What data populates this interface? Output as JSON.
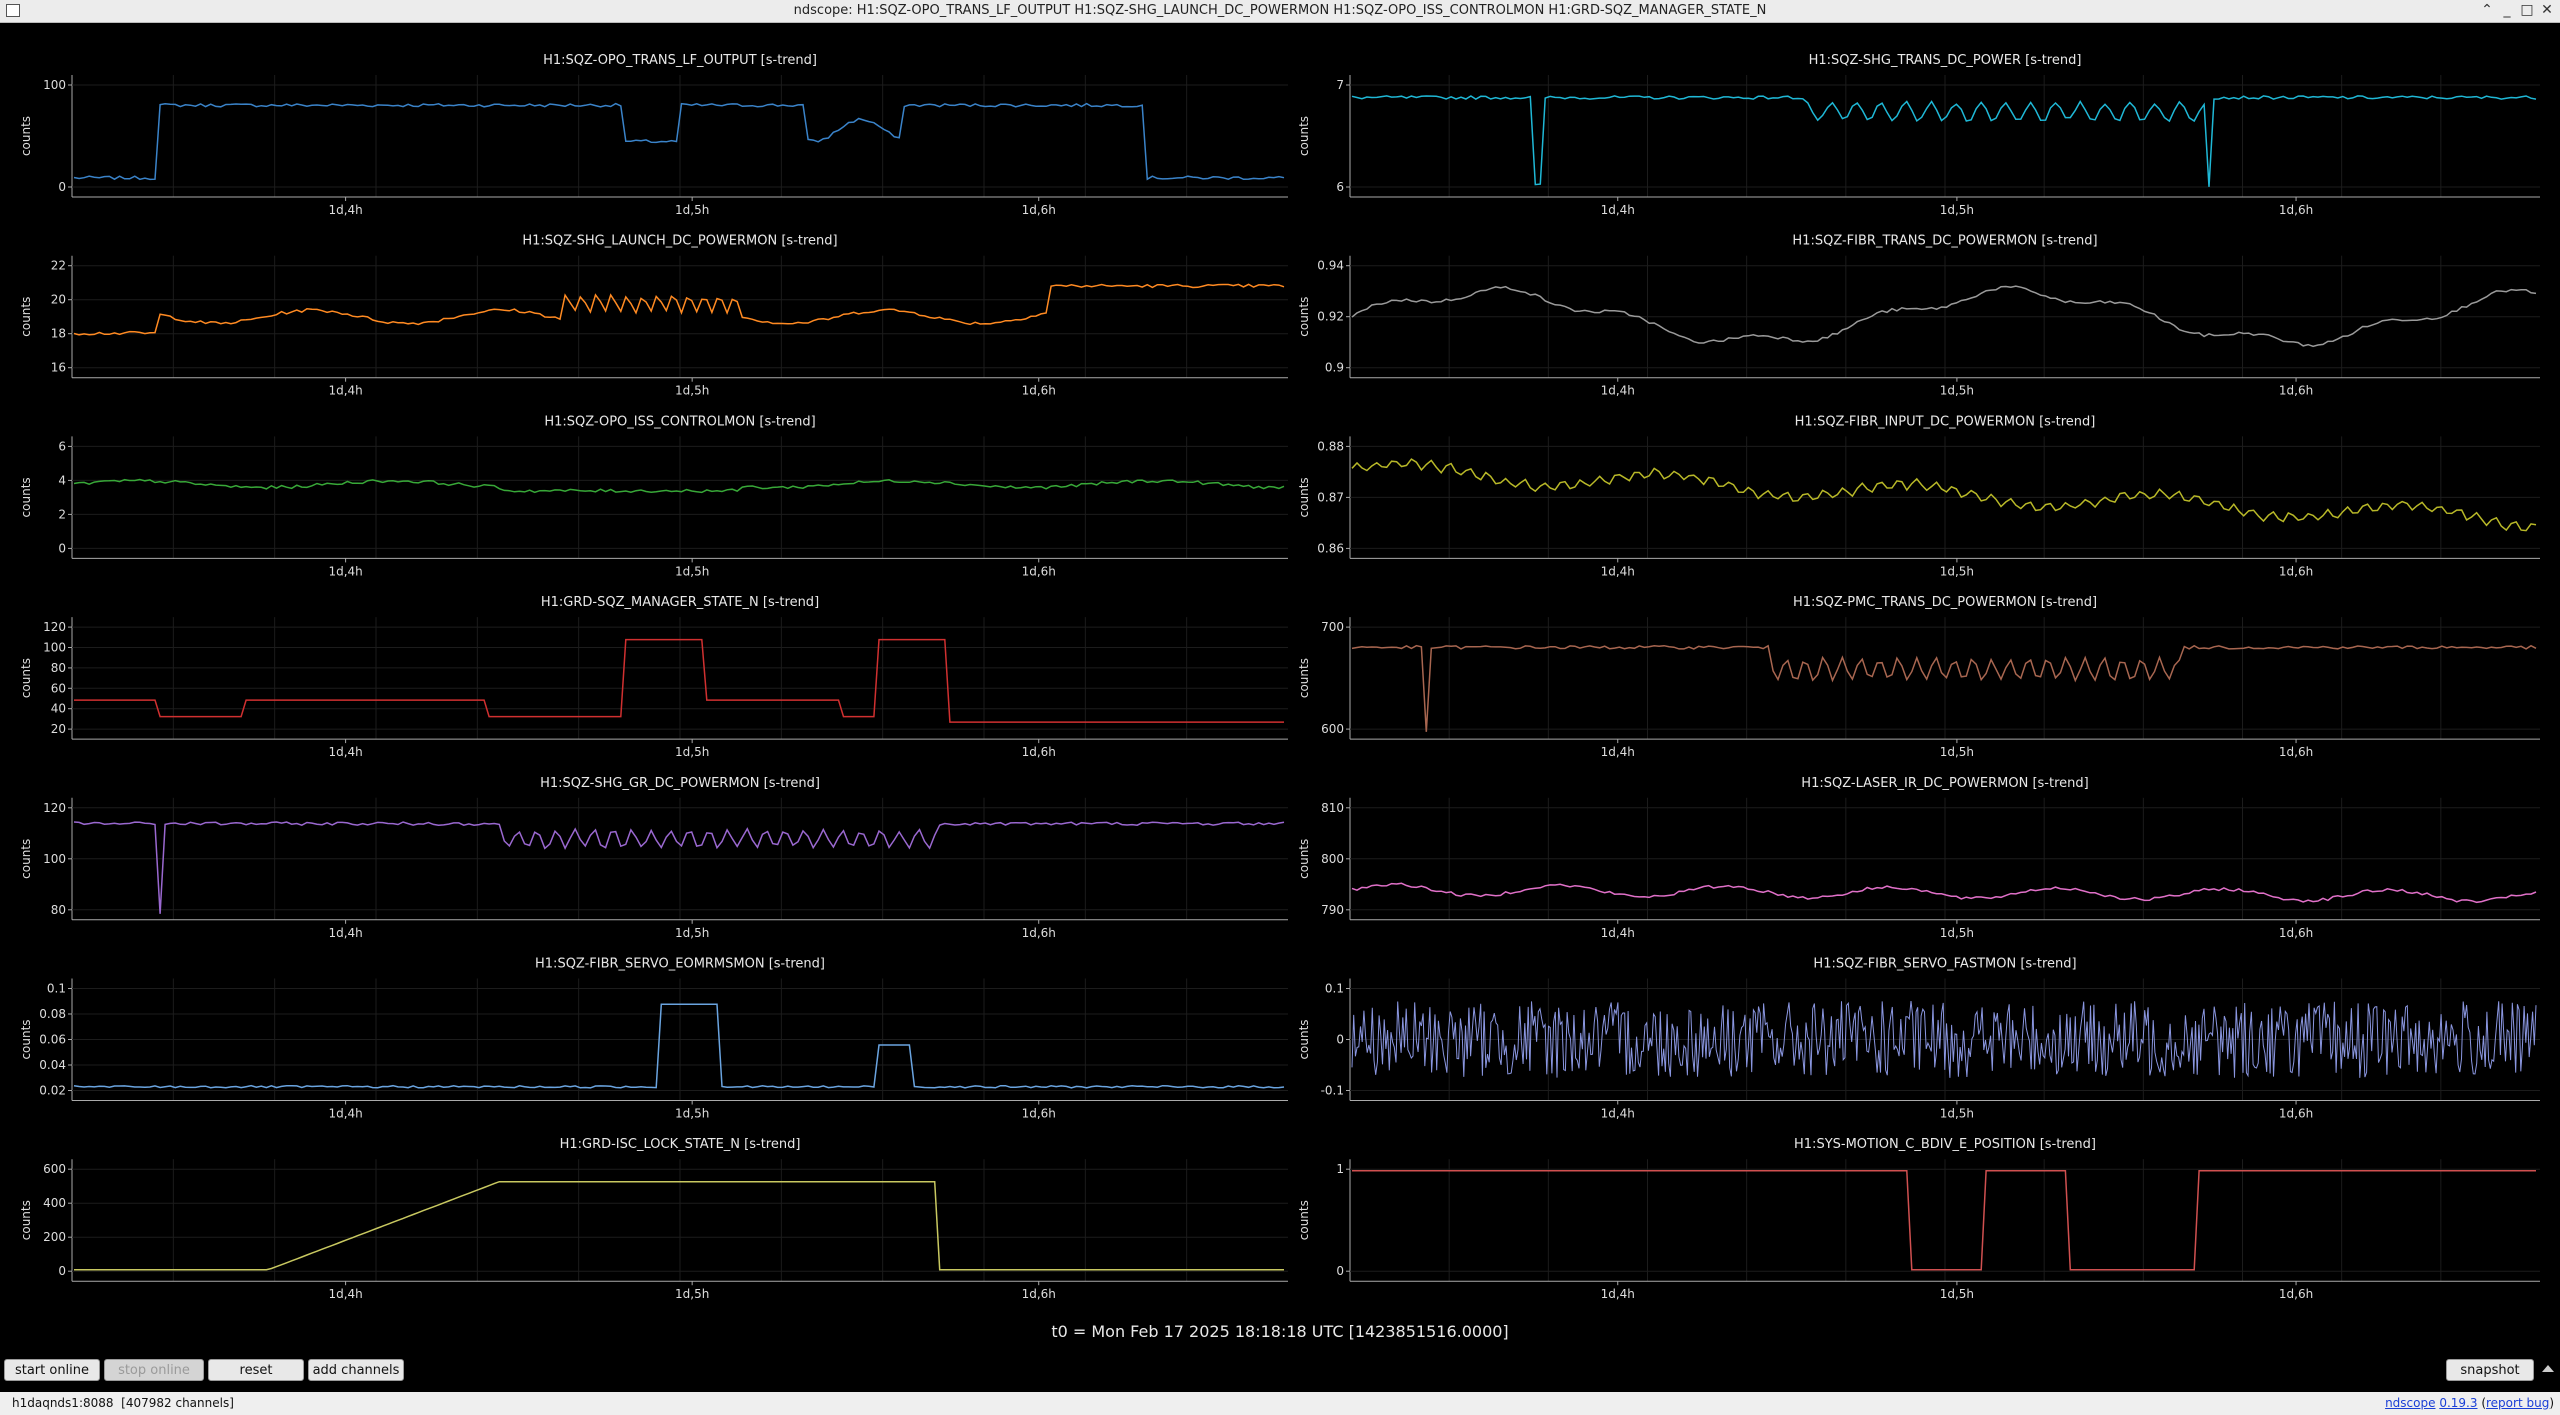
{
  "window": {
    "title": "ndscope: H1:SQZ-OPO_TRANS_LF_OUTPUT H1:SQZ-SHG_LAUNCH_DC_POWERMON H1:SQZ-OPO_ISS_CONTROLMON H1:GRD-SQZ_MANAGER_STATE_N",
    "controls": [
      "⌃",
      "_",
      "□",
      "✕"
    ]
  },
  "time_axis": {
    "ticks": [
      "1d,4h",
      "1d,5h",
      "1d,6h"
    ]
  },
  "plots": [
    {
      "title": "H1:SQZ-OPO_TRANS_LF_OUTPUT [s-trend]",
      "ylabel": "counts",
      "yticks": [
        "100",
        "0"
      ],
      "color": "#3a83c9"
    },
    {
      "title": "H1:SQZ-SHG_TRANS_DC_POWER [s-trend]",
      "ylabel": "counts",
      "yticks": [
        "7",
        "6"
      ],
      "color": "#1fb8d6"
    },
    {
      "title": "H1:SQZ-SHG_LAUNCH_DC_POWERMON [s-trend]",
      "ylabel": "counts",
      "yticks": [
        "22",
        "20",
        "18",
        "16"
      ],
      "color": "#ff8a22"
    },
    {
      "title": "H1:SQZ-FIBR_TRANS_DC_POWERMON [s-trend]",
      "ylabel": "counts",
      "yticks": [
        "0.94",
        "0.92",
        "0.9"
      ],
      "color": "#9a9a9a"
    },
    {
      "title": "H1:SQZ-OPO_ISS_CONTROLMON [s-trend]",
      "ylabel": "counts",
      "yticks": [
        "6",
        "4",
        "2",
        "0"
      ],
      "color": "#38a838"
    },
    {
      "title": "H1:SQZ-FIBR_INPUT_DC_POWERMON [s-trend]",
      "ylabel": "counts",
      "yticks": [
        "0.88",
        "0.87",
        "0.86"
      ],
      "color": "#b8b828"
    },
    {
      "title": "H1:GRD-SQZ_MANAGER_STATE_N [s-trend]",
      "ylabel": "counts",
      "yticks": [
        "120",
        "100",
        "80",
        "60",
        "40",
        "20"
      ],
      "color": "#d03030"
    },
    {
      "title": "H1:SQZ-PMC_TRANS_DC_POWERMON [s-trend]",
      "ylabel": "counts",
      "yticks": [
        "700",
        "600"
      ],
      "color": "#a86650"
    },
    {
      "title": "H1:SQZ-SHG_GR_DC_POWERMON [s-trend]",
      "ylabel": "counts",
      "yticks": [
        "120",
        "100",
        "80"
      ],
      "color": "#9a68d0"
    },
    {
      "title": "H1:SQZ-LASER_IR_DC_POWERMON [s-trend]",
      "ylabel": "counts",
      "yticks": [
        "810",
        "800",
        "790"
      ],
      "color": "#e070c8"
    },
    {
      "title": "H1:SQZ-FIBR_SERVO_EOMRMSMON [s-trend]",
      "ylabel": "counts",
      "yticks": [
        "0.1",
        "0.08",
        "0.06",
        "0.04",
        "0.02"
      ],
      "color": "#6aa4e0"
    },
    {
      "title": "H1:SQZ-FIBR_SERVO_FASTMON [s-trend]",
      "ylabel": "counts",
      "yticks": [
        "0.1",
        "0",
        "-0.1"
      ],
      "color": "#8a96e0"
    },
    {
      "title": "H1:GRD-ISC_LOCK_STATE_N [s-trend]",
      "ylabel": "counts",
      "yticks": [
        "600",
        "400",
        "200",
        "0"
      ],
      "color": "#c8c860"
    },
    {
      "title": "H1:SYS-MOTION_C_BDIV_E_POSITION [s-trend]",
      "ylabel": "counts",
      "yticks": [
        "1",
        "0"
      ],
      "color": "#d05050"
    }
  ],
  "t0_label": "t0 = Mon Feb 17 2025 18:18:18 UTC [1423851516.0000]",
  "buttons": {
    "start_online": "start online",
    "stop_online": "stop online",
    "reset": "reset",
    "add_channels": "add channels",
    "snapshot": "snapshot"
  },
  "status": {
    "server": "h1daqnds1:8088",
    "channels": "[407982 channels]",
    "version_prefix": "ndscope",
    "version": "0.19.3",
    "report_bug": "report bug"
  }
}
